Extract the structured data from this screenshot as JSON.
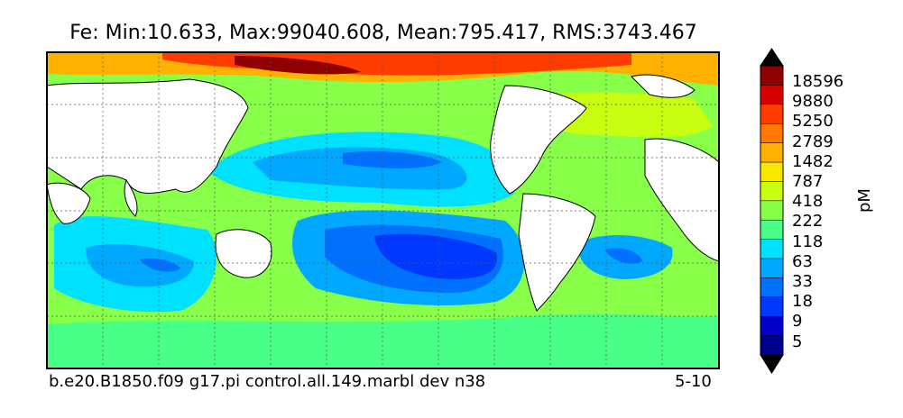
{
  "title": "Fe: Min:10.633, Max:99040.608, Mean:795.417, RMS:3743.467",
  "caption_left": "b.e20.B1850.f09 g17.pi control.all.149.marbl dev n38",
  "caption_right": "5-10",
  "colorbar": {
    "unit": "pM",
    "labels": [
      "18596",
      "9880",
      "5250",
      "2789",
      "1482",
      "787",
      "418",
      "222",
      "118",
      "63",
      "33",
      "18",
      "9",
      "5"
    ],
    "colors": [
      "#00008f",
      "#0000c8",
      "#0038ff",
      "#0070ff",
      "#00a8ff",
      "#00e0ff",
      "#48ff88",
      "#88ff48",
      "#c8ff10",
      "#f8e800",
      "#ffb000",
      "#ff7800",
      "#ff3c00",
      "#d80000",
      "#8f0000"
    ],
    "land_color": "#ffffff"
  },
  "map": {
    "projection": "global lat-lon",
    "grid": "dashed"
  }
}
